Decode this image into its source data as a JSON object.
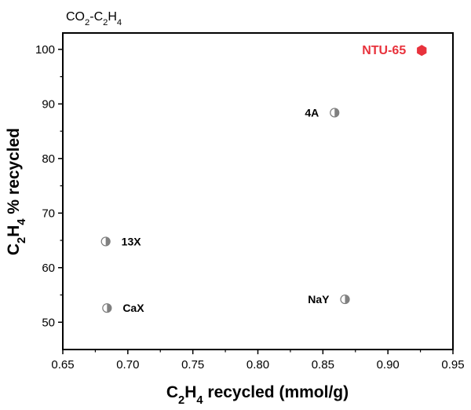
{
  "chart_data": {
    "type": "scatter",
    "title": "",
    "corner_label": {
      "parts": [
        {
          "text": "CO",
          "sub": false
        },
        {
          "text": "2",
          "sub": true
        },
        {
          "text": "-C",
          "sub": false
        },
        {
          "text": "2",
          "sub": true
        },
        {
          "text": "H",
          "sub": false
        },
        {
          "text": "4",
          "sub": true
        }
      ]
    },
    "xlabel": {
      "parts": [
        {
          "text": "C",
          "sub": false
        },
        {
          "text": "2",
          "sub": true
        },
        {
          "text": "H",
          "sub": false
        },
        {
          "text": "4",
          "sub": true
        },
        {
          "text": " recycled (mmol/g)",
          "sub": false
        }
      ]
    },
    "ylabel": {
      "parts": [
        {
          "text": "C",
          "sub": false
        },
        {
          "text": "2",
          "sub": true
        },
        {
          "text": "H",
          "sub": false
        },
        {
          "text": "4",
          "sub": true
        },
        {
          "text": " % recycled",
          "sub": false
        }
      ]
    },
    "xlim": [
      0.65,
      0.95
    ],
    "ylim": [
      45,
      103
    ],
    "xticks": [
      "0.65",
      "0.70",
      "0.75",
      "0.80",
      "0.85",
      "0.90",
      "0.95"
    ],
    "yticks": [
      "50",
      "60",
      "70",
      "80",
      "90",
      "100"
    ],
    "grid": false,
    "points": [
      {
        "label": "NTU-65",
        "x": 0.926,
        "y": 99.8,
        "marker": "hexagon",
        "color": "#e8323c",
        "label_side": "left"
      },
      {
        "label": "4A",
        "x": 0.859,
        "y": 88.4,
        "marker": "half-circle",
        "color": "#808080",
        "label_side": "left"
      },
      {
        "label": "13X",
        "x": 0.683,
        "y": 64.8,
        "marker": "half-circle",
        "color": "#808080",
        "label_side": "right"
      },
      {
        "label": "NaY",
        "x": 0.867,
        "y": 54.2,
        "marker": "half-circle",
        "color": "#808080",
        "label_side": "left"
      },
      {
        "label": "CaX",
        "x": 0.684,
        "y": 52.6,
        "marker": "half-circle",
        "color": "#808080",
        "label_side": "right"
      }
    ]
  }
}
